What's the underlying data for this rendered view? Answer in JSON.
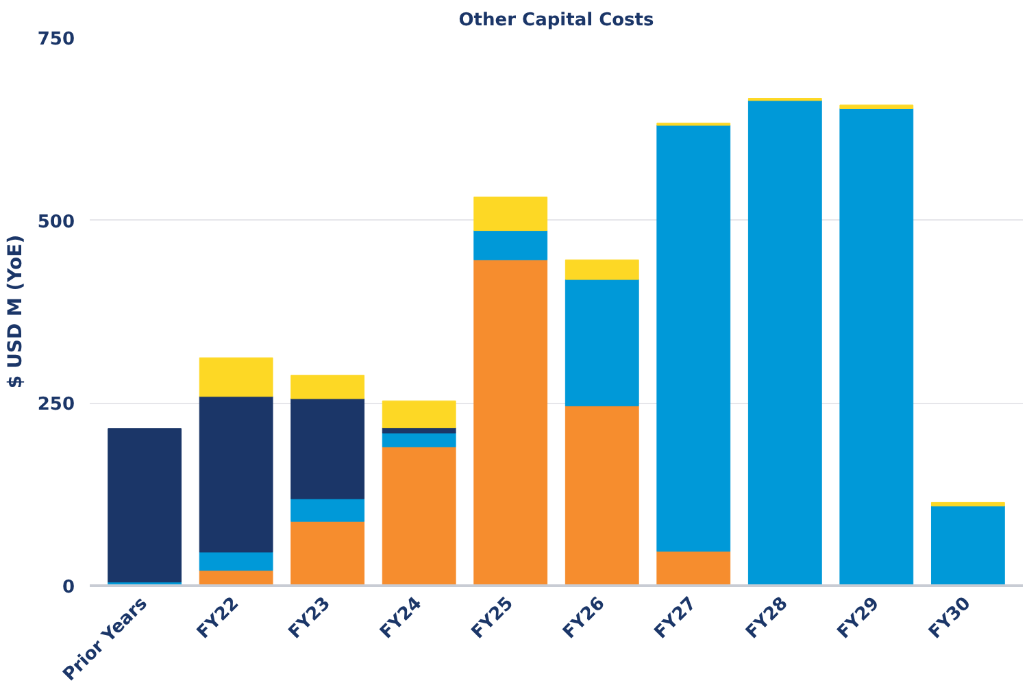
{
  "chart_data": {
    "type": "bar",
    "title": "Other Capital Costs",
    "ylabel": "$ USD M (YoE)",
    "stacked": true,
    "categories": [
      "Prior Years",
      "FY22",
      "FY23",
      "FY24",
      "FY25",
      "FY26",
      "FY27",
      "FY28",
      "FY29",
      "FY30"
    ],
    "series": [
      {
        "color": "#f68d2e",
        "values": [
          null,
          21,
          88,
          190,
          446,
          246,
          47,
          null,
          null,
          null
        ]
      },
      {
        "color": "#0099d8",
        "values": [
          5,
          25,
          31,
          19,
          40,
          173,
          583,
          664,
          653,
          109
        ]
      },
      {
        "color": "#1b3668",
        "values": [
          210,
          213,
          137,
          7,
          null,
          null,
          null,
          null,
          null,
          null
        ]
      },
      {
        "color": "#fdd825",
        "values": [
          null,
          53,
          32,
          37,
          46,
          27,
          3,
          3,
          5,
          5
        ]
      }
    ],
    "ylim": [
      0,
      750
    ],
    "yticks": [
      0,
      250,
      500,
      750
    ],
    "grid": "y"
  }
}
